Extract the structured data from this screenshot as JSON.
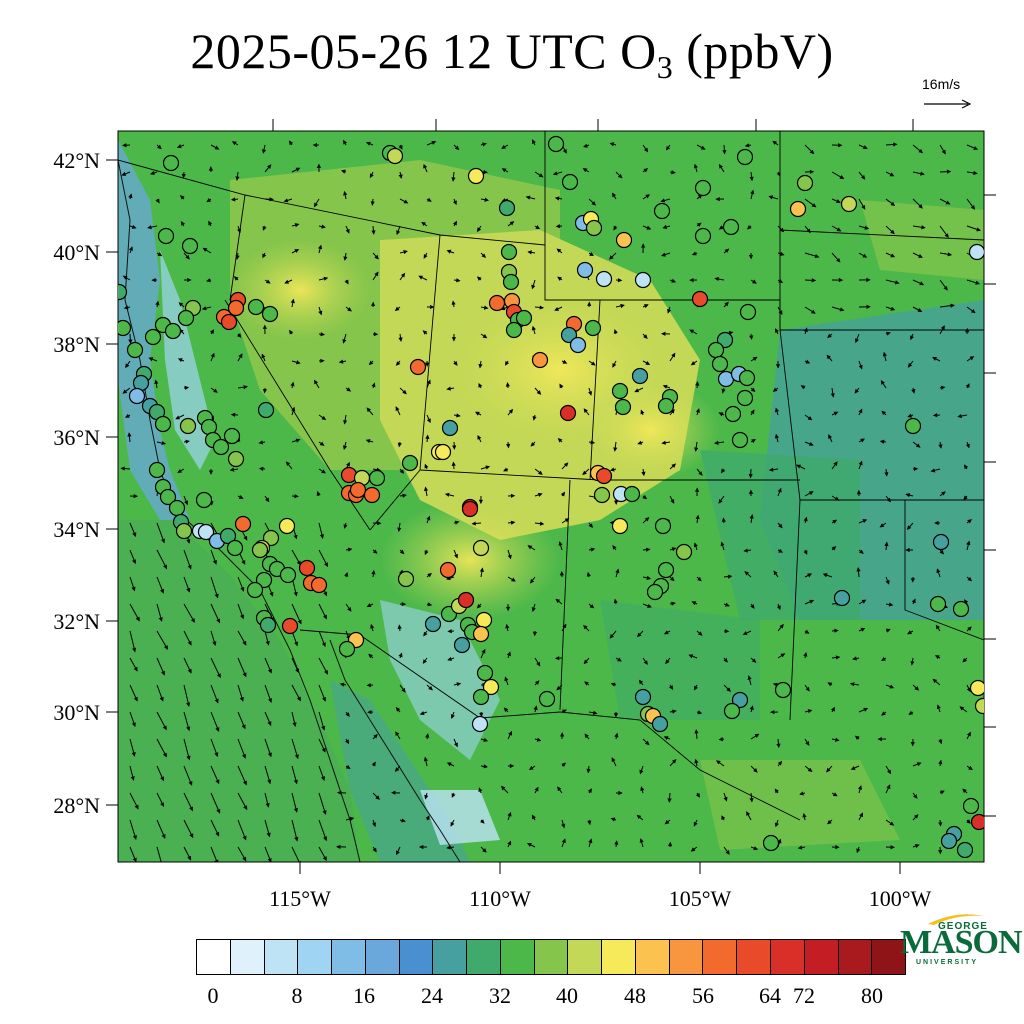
{
  "title": {
    "prefix": "2025-05-26 12 UTC O",
    "subscript": "3",
    "suffix": " (ppbV)"
  },
  "reference_vector": {
    "label": "16m/s"
  },
  "map": {
    "lat_labels": [
      "42°N",
      "40°N",
      "38°N",
      "36°N",
      "34°N",
      "32°N",
      "30°N",
      "28°N"
    ],
    "lon_labels": [
      "115°W",
      "110°W",
      "105°W",
      "100°W"
    ]
  },
  "colorbar": {
    "colors": [
      "#ffffff",
      "#dff1fb",
      "#bde3f5",
      "#9fd4f2",
      "#7fbde6",
      "#6aa8dc",
      "#4a8fcf",
      "#46a0a0",
      "#3faa6c",
      "#4cb84a",
      "#86c54b",
      "#c3d856",
      "#f6e95a",
      "#fbc24f",
      "#f7963e",
      "#f26a2d",
      "#e84a2a",
      "#d83028",
      "#c41e24",
      "#a81a1e",
      "#8e1418"
    ],
    "labels": [
      "0",
      "8",
      "16",
      "24",
      "32",
      "40",
      "48",
      "56",
      "64",
      "72",
      "80"
    ]
  },
  "logo": {
    "line1": "GEORGE",
    "line2": "MASON",
    "line3": "UNIVERSITY"
  }
}
